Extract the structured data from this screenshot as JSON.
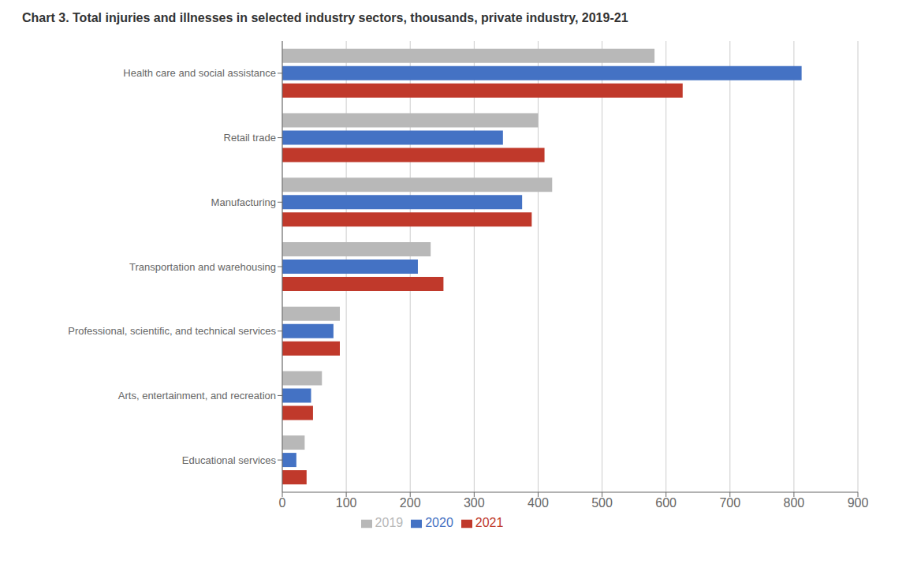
{
  "chart_data": {
    "type": "bar",
    "title": "Chart 3. Total injuries and illnesses in selected industry sectors, thousands, private industry, 2019-21",
    "orientation": "horizontal",
    "categories": [
      "Health care and social assistance",
      "Retail trade",
      "Manufacturing",
      "Transportation and warehousing",
      "Professional, scientific, and technical services",
      "Arts, entertainment, and recreation",
      "Educational services"
    ],
    "series": [
      {
        "name": "2019",
        "color": "#b8b8b8",
        "values": [
          582,
          400,
          422,
          232,
          90,
          62,
          35
        ]
      },
      {
        "name": "2020",
        "color": "#4472c4",
        "values": [
          812,
          345,
          375,
          212,
          80,
          45,
          22
        ]
      },
      {
        "name": "2021",
        "color": "#c0392b",
        "values": [
          626,
          410,
          390,
          252,
          90,
          48,
          38
        ]
      }
    ],
    "xlim": [
      0,
      900
    ],
    "xticks": [
      0,
      100,
      200,
      300,
      400,
      500,
      600,
      700,
      800,
      900
    ],
    "grid": true,
    "legend": "bottom"
  }
}
